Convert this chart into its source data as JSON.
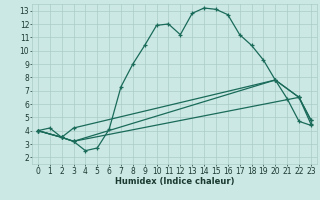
{
  "title": "",
  "xlabel": "Humidex (Indice chaleur)",
  "bg_color": "#cce8e4",
  "grid_color": "#aaccc8",
  "line_color": "#1a6b5a",
  "xlim": [
    -0.5,
    23.5
  ],
  "ylim": [
    1.5,
    13.5
  ],
  "xticks": [
    0,
    1,
    2,
    3,
    4,
    5,
    6,
    7,
    8,
    9,
    10,
    11,
    12,
    13,
    14,
    15,
    16,
    17,
    18,
    19,
    20,
    21,
    22,
    23
  ],
  "yticks": [
    2,
    3,
    4,
    5,
    6,
    7,
    8,
    9,
    10,
    11,
    12,
    13
  ],
  "line1_x": [
    0,
    1,
    2,
    3,
    4,
    5,
    6,
    7,
    8,
    9,
    10,
    11,
    12,
    13,
    14,
    15,
    16,
    17,
    18,
    19,
    20,
    21,
    22,
    23
  ],
  "line1_y": [
    4.0,
    4.2,
    3.5,
    3.2,
    2.5,
    2.7,
    4.1,
    7.3,
    9.0,
    10.4,
    11.9,
    12.0,
    11.2,
    12.8,
    13.2,
    13.1,
    12.7,
    11.2,
    10.4,
    9.3,
    7.8,
    6.4,
    4.7,
    4.4
  ],
  "line2_x": [
    0,
    2,
    3,
    22,
    23
  ],
  "line2_y": [
    4.0,
    3.5,
    3.2,
    6.5,
    4.5
  ],
  "line3_x": [
    0,
    2,
    3,
    20,
    22,
    23
  ],
  "line3_y": [
    4.0,
    3.5,
    4.2,
    7.8,
    6.5,
    4.8
  ],
  "line4_x": [
    0,
    2,
    3,
    20,
    22,
    23
  ],
  "line4_y": [
    4.0,
    3.5,
    3.2,
    7.8,
    6.5,
    4.8
  ],
  "xlabel_fontsize": 6,
  "tick_fontsize": 5.5
}
